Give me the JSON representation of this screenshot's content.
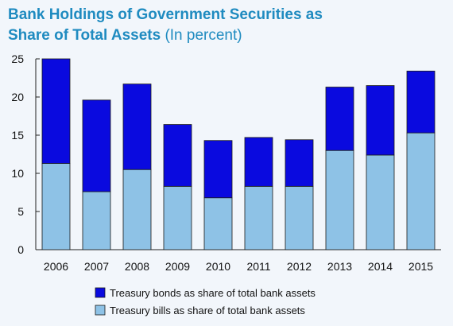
{
  "title_line1": "Bank Holdings of Government Securities as",
  "title_line2": "Share of Total Assets",
  "subtitle": "(In percent)",
  "colors": {
    "title": "#1f8bc0",
    "bonds": "#0a0adf",
    "bills": "#8ec2e6",
    "background": "#f2f6fb"
  },
  "chart_data": {
    "type": "bar",
    "stacked": true,
    "title": "Bank Holdings of Government Securities as Share of Total Assets",
    "subtitle": "(In percent)",
    "categories": [
      "2006",
      "2007",
      "2008",
      "2009",
      "2010",
      "2011",
      "2012",
      "2013",
      "2014",
      "2015"
    ],
    "series": [
      {
        "name": "Treasury bills as share of total bank assets",
        "color": "#8ec2e6",
        "values": [
          11.3,
          7.6,
          10.5,
          8.3,
          6.8,
          8.3,
          8.3,
          13.0,
          12.4,
          15.3
        ]
      },
      {
        "name": "Treasury bonds as share of total bank assets",
        "color": "#0a0adf",
        "values": [
          13.7,
          12.0,
          11.2,
          8.1,
          7.5,
          6.4,
          6.1,
          8.3,
          9.1,
          8.1
        ]
      }
    ],
    "ylim": [
      0,
      25
    ],
    "yticks": [
      "0",
      "5",
      "10",
      "15",
      "20",
      "25"
    ],
    "xlabel": "",
    "ylabel": "",
    "grid": false,
    "legend_position": "bottom"
  }
}
